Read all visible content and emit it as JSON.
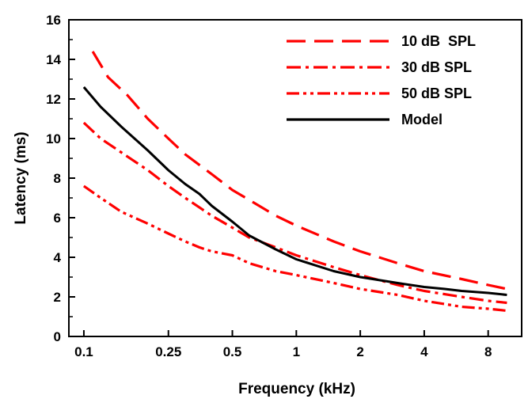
{
  "chart_data": {
    "type": "line",
    "xlabel": "Frequency (kHz)",
    "ylabel": "Latency (ms)",
    "x_scale": "log",
    "xlim": [
      0.085,
      11.5
    ],
    "ylim": [
      0,
      16
    ],
    "x_ticks": [
      0.1,
      0.25,
      0.5,
      1,
      2,
      4,
      8
    ],
    "x_tick_labels": [
      "0.1",
      "0.25",
      "0.5",
      "1",
      "2",
      "4",
      "8"
    ],
    "y_ticks": [
      0,
      2,
      4,
      6,
      8,
      10,
      12,
      14,
      16
    ],
    "y_tick_labels": [
      "0",
      "2",
      "4",
      "6",
      "8",
      "10",
      "12",
      "14",
      "16"
    ],
    "grid": false,
    "legend_position": "top-right",
    "series": [
      {
        "name": "10 dB  SPL",
        "color": "#ff0000",
        "dash": "dashed",
        "x": [
          0.11,
          0.13,
          0.16,
          0.2,
          0.25,
          0.3,
          0.4,
          0.5,
          0.6,
          0.8,
          1,
          1.5,
          2,
          3,
          4,
          6,
          8,
          9.8
        ],
        "y": [
          14.4,
          13.1,
          12.2,
          11.0,
          10.0,
          9.2,
          8.2,
          7.4,
          6.9,
          6.1,
          5.6,
          4.8,
          4.3,
          3.7,
          3.3,
          2.9,
          2.6,
          2.4
        ]
      },
      {
        "name": "30 dB SPL",
        "color": "#ff0000",
        "dash": "dash-dot",
        "x": [
          0.1,
          0.12,
          0.15,
          0.2,
          0.25,
          0.3,
          0.4,
          0.5,
          0.6,
          0.8,
          1,
          1.5,
          2,
          3,
          4,
          6,
          8,
          9.8
        ],
        "y": [
          10.8,
          10.0,
          9.3,
          8.4,
          7.6,
          7.0,
          6.1,
          5.5,
          5.0,
          4.5,
          4.1,
          3.5,
          3.1,
          2.6,
          2.3,
          2.0,
          1.8,
          1.7
        ]
      },
      {
        "name": "50 dB SPL",
        "color": "#ff0000",
        "dash": "dash-dot-dot",
        "x": [
          0.1,
          0.12,
          0.15,
          0.2,
          0.25,
          0.3,
          0.35,
          0.4,
          0.5,
          0.6,
          0.8,
          1,
          1.5,
          2,
          3,
          4,
          6,
          8,
          9.8
        ],
        "y": [
          7.6,
          7.0,
          6.3,
          5.7,
          5.2,
          4.8,
          4.5,
          4.3,
          4.1,
          3.7,
          3.3,
          3.1,
          2.7,
          2.4,
          2.1,
          1.8,
          1.5,
          1.4,
          1.3
        ]
      },
      {
        "name": "Model",
        "color": "#000000",
        "dash": "solid",
        "x": [
          0.1,
          0.12,
          0.15,
          0.2,
          0.25,
          0.3,
          0.35,
          0.4,
          0.5,
          0.6,
          0.8,
          1,
          1.5,
          2,
          3,
          4,
          5,
          6,
          8,
          9.8
        ],
        "y": [
          12.6,
          11.6,
          10.6,
          9.4,
          8.4,
          7.7,
          7.2,
          6.6,
          5.8,
          5.1,
          4.4,
          3.9,
          3.3,
          3.0,
          2.7,
          2.5,
          2.4,
          2.3,
          2.2,
          2.1
        ]
      }
    ]
  }
}
